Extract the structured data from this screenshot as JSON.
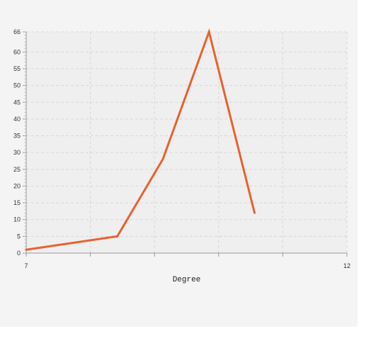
{
  "chart_data": {
    "type": "line",
    "title": "",
    "xlabel": "Degree",
    "ylabel": "",
    "xlim": [
      7,
      12
    ],
    "ylim": [
      0,
      66
    ],
    "x_ticks": [
      "7",
      "12"
    ],
    "y_ticks": [
      "0",
      "5",
      "10",
      "15",
      "20",
      "25",
      "30",
      "35",
      "40",
      "45",
      "50",
      "55",
      "60",
      "66"
    ],
    "grid": true,
    "series": [
      {
        "x": [
          7,
          8.42,
          9.13,
          9.85,
          10.56
        ],
        "y": [
          1,
          5,
          28,
          66,
          12
        ],
        "color": "#e8622f"
      }
    ]
  }
}
